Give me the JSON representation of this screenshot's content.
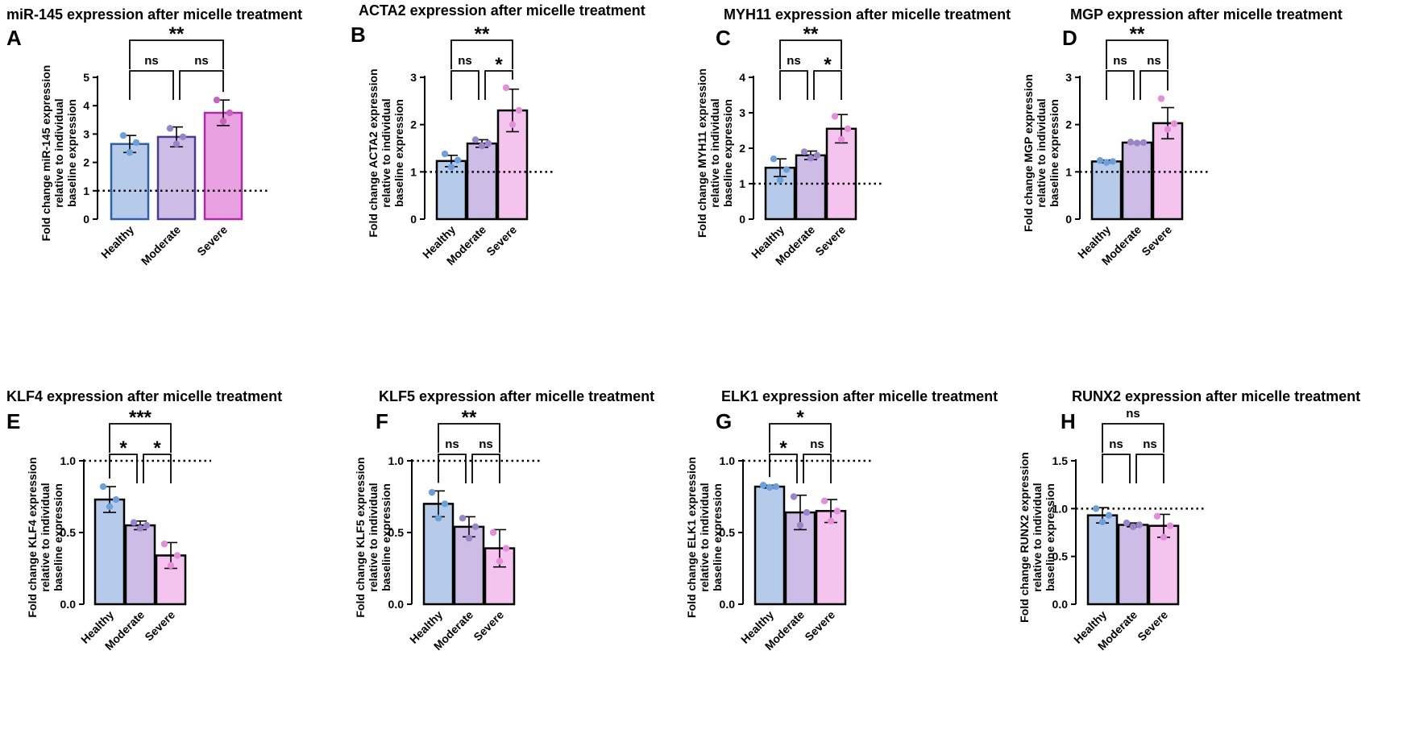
{
  "figure": {
    "colors": {
      "healthy_fill": "#b5cbe9",
      "healthy_point": "#6f9fd8",
      "moderate_fill": "#cdbde6",
      "moderate_point": "#9a84c8",
      "severe_fill": "#f4c3ee",
      "severe_point": "#e28ed8",
      "severe_fill_a": "#e8a0e0",
      "severe_point_a": "#c862c0",
      "ink": "#000000"
    }
  },
  "chart_data": [
    {
      "panel": "A",
      "type": "bar",
      "title": "miR-145 expression after micelle treatment",
      "ylabel": [
        "Fold change miR-145 expression",
        "relative to individual",
        "baseline expression"
      ],
      "categories": [
        "Healthy",
        "Moderate",
        "Severe"
      ],
      "values": [
        2.65,
        2.9,
        3.75
      ],
      "errors": [
        0.3,
        0.35,
        0.45
      ],
      "points": [
        [
          2.95,
          2.7,
          2.35
        ],
        [
          3.2,
          2.9,
          2.65
        ],
        [
          4.2,
          3.75,
          3.45
        ]
      ],
      "ylim": [
        0,
        5
      ],
      "yticks": [
        "0",
        "1",
        "2",
        "3",
        "4",
        "5"
      ],
      "baseline": 1,
      "comparisons": [
        {
          "from": 0,
          "to": 1,
          "label": "ns",
          "level": 0
        },
        {
          "from": 1,
          "to": 2,
          "label": "ns",
          "level": 0
        },
        {
          "from": 0,
          "to": 2,
          "label": "**",
          "level": 1
        }
      ]
    },
    {
      "panel": "B",
      "type": "bar",
      "title": "ACTA2 expression after micelle treatment",
      "ylabel": [
        "Fold change ACTA2 expression",
        "relative to individual",
        "baseline expression"
      ],
      "categories": [
        "Healthy",
        "Moderate",
        "Severe"
      ],
      "values": [
        1.23,
        1.6,
        2.3
      ],
      "errors": [
        0.12,
        0.08,
        0.45
      ],
      "points": [
        [
          1.38,
          1.25,
          1.1
        ],
        [
          1.68,
          1.6,
          1.55
        ],
        [
          2.78,
          2.3,
          2.0
        ]
      ],
      "ylim": [
        0,
        3
      ],
      "yticks": [
        "0",
        "1",
        "2",
        "3"
      ],
      "baseline": 1,
      "comparisons": [
        {
          "from": 0,
          "to": 1,
          "label": "ns",
          "level": 0
        },
        {
          "from": 1,
          "to": 2,
          "label": "*",
          "level": 0
        },
        {
          "from": 0,
          "to": 2,
          "label": "**",
          "level": 1
        }
      ]
    },
    {
      "panel": "C",
      "type": "bar",
      "title": "MYH11 expression after micelle treatment",
      "ylabel": [
        "Fold change MYH11 expression",
        "relative to individual",
        "baseline expression"
      ],
      "categories": [
        "Healthy",
        "Moderate",
        "Severe"
      ],
      "values": [
        1.45,
        1.8,
        2.55
      ],
      "errors": [
        0.25,
        0.12,
        0.4
      ],
      "points": [
        [
          1.7,
          1.4,
          1.1
        ],
        [
          1.9,
          1.8,
          1.72
        ],
        [
          2.9,
          2.55,
          2.25
        ]
      ],
      "ylim": [
        0,
        4
      ],
      "yticks": [
        "0",
        "1",
        "2",
        "3",
        "4"
      ],
      "baseline": 1,
      "comparisons": [
        {
          "from": 0,
          "to": 1,
          "label": "ns",
          "level": 0
        },
        {
          "from": 1,
          "to": 2,
          "label": "*",
          "level": 0
        },
        {
          "from": 0,
          "to": 2,
          "label": "**",
          "level": 1
        }
      ]
    },
    {
      "panel": "D",
      "type": "bar",
      "title": "MGP expression after micelle treatment",
      "ylabel": [
        "Fold change MGP expression",
        "relative to individual",
        "baseline expression"
      ],
      "categories": [
        "Healthy",
        "Moderate",
        "Severe"
      ],
      "values": [
        1.22,
        1.62,
        2.03
      ],
      "errors": [
        0.03,
        0.01,
        0.33
      ],
      "points": [
        [
          1.24,
          1.22,
          1.2
        ],
        [
          1.63,
          1.62,
          1.61
        ],
        [
          2.55,
          2.02,
          1.9
        ]
      ],
      "ylim": [
        0,
        3
      ],
      "yticks": [
        "0",
        "1",
        "2",
        "3"
      ],
      "baseline": 1,
      "comparisons": [
        {
          "from": 0,
          "to": 1,
          "label": "ns",
          "level": 0
        },
        {
          "from": 1,
          "to": 2,
          "label": "ns",
          "level": 0
        },
        {
          "from": 0,
          "to": 2,
          "label": "**",
          "level": 1
        }
      ]
    },
    {
      "panel": "E",
      "type": "bar",
      "title": "KLF4 expression after micelle treatment",
      "ylabel": [
        "Fold change KLF4 expression",
        "relative to individual",
        "baseline expression"
      ],
      "categories": [
        "Healthy",
        "Moderate",
        "Severe"
      ],
      "values": [
        0.73,
        0.55,
        0.34
      ],
      "errors": [
        0.09,
        0.03,
        0.09
      ],
      "points": [
        [
          0.82,
          0.73,
          0.68
        ],
        [
          0.57,
          0.55,
          0.53
        ],
        [
          0.42,
          0.34,
          0.27
        ]
      ],
      "ylim": [
        0,
        1
      ],
      "yticks": [
        "0.0",
        "0.5",
        "1.0"
      ],
      "baseline": 1,
      "comparisons": [
        {
          "from": 0,
          "to": 1,
          "label": "*",
          "level": 0
        },
        {
          "from": 1,
          "to": 2,
          "label": "*",
          "level": 0
        },
        {
          "from": 0,
          "to": 2,
          "label": "***",
          "level": 1
        }
      ]
    },
    {
      "panel": "F",
      "type": "bar",
      "title": "KLF5 expression after micelle treatment",
      "ylabel": [
        "Fold change KLF5 expression",
        "relative to individual",
        "baseline expression"
      ],
      "categories": [
        "Healthy",
        "Moderate",
        "Severe"
      ],
      "values": [
        0.7,
        0.54,
        0.39
      ],
      "errors": [
        0.09,
        0.07,
        0.13
      ],
      "points": [
        [
          0.78,
          0.7,
          0.6
        ],
        [
          0.6,
          0.54,
          0.46
        ],
        [
          0.5,
          0.39,
          0.3
        ]
      ],
      "ylim": [
        0,
        1
      ],
      "yticks": [
        "0.0",
        "0.5",
        "1.0"
      ],
      "baseline": 1,
      "comparisons": [
        {
          "from": 0,
          "to": 1,
          "label": "ns",
          "level": 0
        },
        {
          "from": 1,
          "to": 2,
          "label": "ns",
          "level": 0
        },
        {
          "from": 0,
          "to": 2,
          "label": "**",
          "level": 1
        }
      ]
    },
    {
      "panel": "G",
      "type": "bar",
      "title": "ELK1 expression after micelle treatment",
      "ylabel": [
        "Fold change ELK1 expression",
        "relative to individual",
        "baseline expression"
      ],
      "categories": [
        "Healthy",
        "Moderate",
        "Severe"
      ],
      "values": [
        0.82,
        0.64,
        0.65
      ],
      "errors": [
        0.01,
        0.12,
        0.08
      ],
      "points": [
        [
          0.83,
          0.82,
          0.815
        ],
        [
          0.75,
          0.64,
          0.55
        ],
        [
          0.72,
          0.65,
          0.58
        ]
      ],
      "ylim": [
        0,
        1
      ],
      "yticks": [
        "0.0",
        "0.5",
        "1.0"
      ],
      "baseline": 1,
      "comparisons": [
        {
          "from": 0,
          "to": 1,
          "label": "*",
          "level": 0
        },
        {
          "from": 1,
          "to": 2,
          "label": "ns",
          "level": 0
        },
        {
          "from": 0,
          "to": 2,
          "label": "*",
          "level": 1
        }
      ]
    },
    {
      "panel": "H",
      "type": "bar",
      "title": "RUNX2 expression after micelle treatment",
      "ylabel": [
        "Fold change RUNX2 expression",
        "relative to individual",
        "baseline expression"
      ],
      "categories": [
        "Healthy",
        "Moderate",
        "Severe"
      ],
      "values": [
        0.93,
        0.83,
        0.82
      ],
      "errors": [
        0.08,
        0.02,
        0.12
      ],
      "points": [
        [
          1.0,
          0.93,
          0.86
        ],
        [
          0.85,
          0.83,
          0.81
        ],
        [
          0.92,
          0.82,
          0.7
        ]
      ],
      "ylim": [
        0,
        1.5
      ],
      "yticks": [
        "0.0",
        "0.5",
        "1.0",
        "1.5"
      ],
      "baseline": 1,
      "comparisons": [
        {
          "from": 0,
          "to": 1,
          "label": "ns",
          "level": 0
        },
        {
          "from": 1,
          "to": 2,
          "label": "ns",
          "level": 0
        },
        {
          "from": 0,
          "to": 2,
          "label": "ns",
          "level": 1
        }
      ]
    }
  ]
}
